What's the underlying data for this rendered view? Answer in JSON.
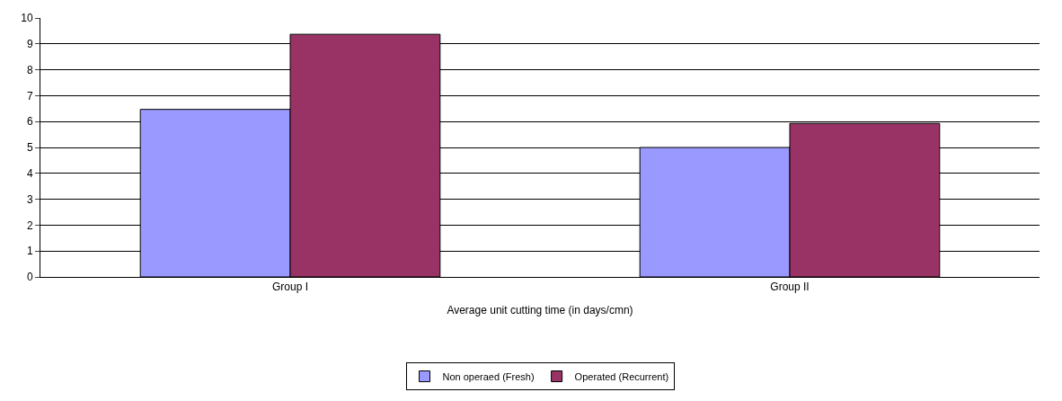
{
  "chart_data": {
    "type": "bar",
    "xlabel": "Average unit cutting time (in days/cmn)",
    "categories": [
      "Group I",
      "Group II"
    ],
    "series": [
      {
        "name": "Non operaed (Fresh)",
        "color": "#9999ff",
        "values": [
          6.47,
          5.0
        ]
      },
      {
        "name": "Operated (Recurrent)",
        "color": "#993366",
        "values": [
          9.37,
          5.93
        ]
      }
    ],
    "ylim": [
      0,
      10
    ],
    "yticks": [
      0,
      1,
      2,
      3,
      4,
      5,
      6,
      7,
      8,
      9,
      10
    ],
    "grid": "y",
    "legend": "bottom"
  }
}
